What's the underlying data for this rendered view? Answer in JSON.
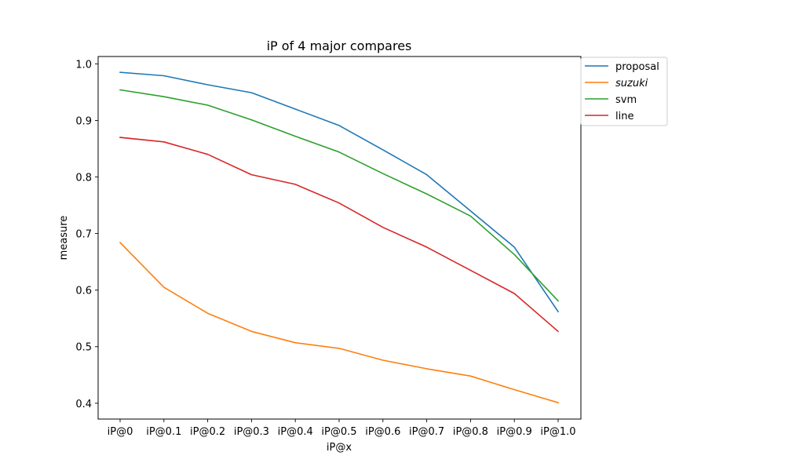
{
  "chart_data": {
    "type": "line",
    "title": "iP of 4 major compares",
    "xlabel": "iP@x",
    "ylabel": "measure",
    "categories": [
      "iP@0",
      "iP@0.1",
      "iP@0.2",
      "iP@0.3",
      "iP@0.4",
      "iP@0.5",
      "iP@0.6",
      "iP@0.7",
      "iP@0.8",
      "iP@0.9",
      "iP@1.0"
    ],
    "ylim": [
      0.372,
      1.013
    ],
    "yticks": [
      "0.4",
      "0.5",
      "0.6",
      "0.7",
      "0.8",
      "0.9",
      "1.0"
    ],
    "grid": false,
    "legend_position": "outside top-right",
    "series": [
      {
        "name": "proposal",
        "color": "#1f77b4",
        "italic": false,
        "values": [
          0.985,
          0.979,
          0.963,
          0.949,
          0.92,
          0.891,
          0.848,
          0.804,
          0.74,
          0.676,
          0.562
        ]
      },
      {
        "name": "suzuki",
        "color": "#ff7f0e",
        "italic": true,
        "values": [
          0.684,
          0.605,
          0.559,
          0.527,
          0.507,
          0.497,
          0.476,
          0.461,
          0.448,
          0.424,
          0.401
        ]
      },
      {
        "name": "svm",
        "color": "#2ca02c",
        "italic": false,
        "values": [
          0.954,
          0.942,
          0.927,
          0.901,
          0.872,
          0.844,
          0.806,
          0.77,
          0.731,
          0.663,
          0.581
        ]
      },
      {
        "name": "line",
        "color": "#d62728",
        "italic": false,
        "values": [
          0.87,
          0.862,
          0.84,
          0.804,
          0.787,
          0.754,
          0.711,
          0.676,
          0.635,
          0.594,
          0.527
        ]
      }
    ]
  }
}
